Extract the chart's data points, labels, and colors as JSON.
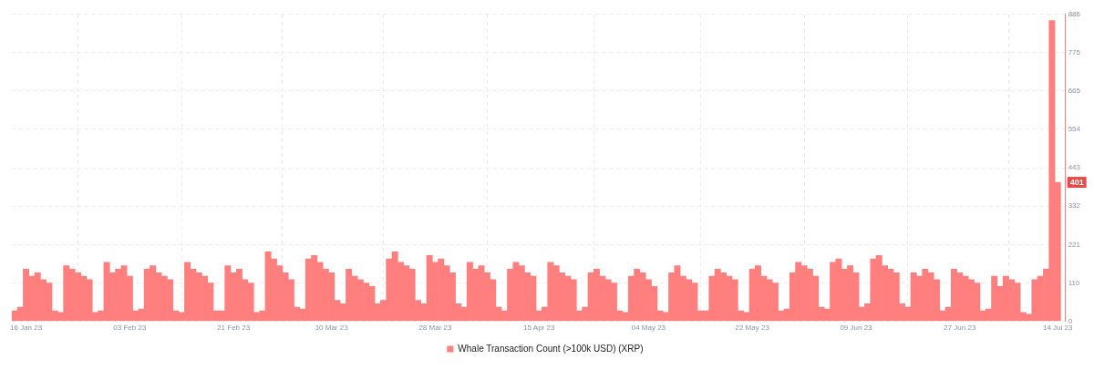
{
  "chart_data": {
    "type": "bar",
    "x": [
      "2023-01-14",
      "2023-01-15",
      "2023-01-16",
      "2023-01-17",
      "2023-01-18",
      "2023-01-19",
      "2023-01-20",
      "2023-01-21",
      "2023-01-22",
      "2023-01-23",
      "2023-01-24",
      "2023-01-25",
      "2023-01-26",
      "2023-01-27",
      "2023-01-28",
      "2023-01-29",
      "2023-01-30",
      "2023-01-31",
      "2023-02-01",
      "2023-02-02",
      "2023-02-03",
      "2023-02-04",
      "2023-02-05",
      "2023-02-06",
      "2023-02-07",
      "2023-02-08",
      "2023-02-09",
      "2023-02-10",
      "2023-02-11",
      "2023-02-12",
      "2023-02-13",
      "2023-02-14",
      "2023-02-15",
      "2023-02-16",
      "2023-02-17",
      "2023-02-18",
      "2023-02-19",
      "2023-02-20",
      "2023-02-21",
      "2023-02-22",
      "2023-02-23",
      "2023-02-24",
      "2023-02-25",
      "2023-02-26",
      "2023-02-27",
      "2023-02-28",
      "2023-03-01",
      "2023-03-02",
      "2023-03-03",
      "2023-03-04",
      "2023-03-05",
      "2023-03-06",
      "2023-03-07",
      "2023-03-08",
      "2023-03-09",
      "2023-03-10",
      "2023-03-11",
      "2023-03-12",
      "2023-03-13",
      "2023-03-14",
      "2023-03-15",
      "2023-03-16",
      "2023-03-17",
      "2023-03-18",
      "2023-03-19",
      "2023-03-20",
      "2023-03-21",
      "2023-03-22",
      "2023-03-23",
      "2023-03-24",
      "2023-03-25",
      "2023-03-26",
      "2023-03-27",
      "2023-03-28",
      "2023-03-29",
      "2023-03-30",
      "2023-03-31",
      "2023-04-01",
      "2023-04-02",
      "2023-04-03",
      "2023-04-04",
      "2023-04-05",
      "2023-04-06",
      "2023-04-07",
      "2023-04-08",
      "2023-04-09",
      "2023-04-10",
      "2023-04-11",
      "2023-04-12",
      "2023-04-13",
      "2023-04-14",
      "2023-04-15",
      "2023-04-16",
      "2023-04-17",
      "2023-04-18",
      "2023-04-19",
      "2023-04-20",
      "2023-04-21",
      "2023-04-22",
      "2023-04-23",
      "2023-04-24",
      "2023-04-25",
      "2023-04-26",
      "2023-04-27",
      "2023-04-28",
      "2023-04-29",
      "2023-04-30",
      "2023-05-01",
      "2023-05-02",
      "2023-05-03",
      "2023-05-04",
      "2023-05-05",
      "2023-05-06",
      "2023-05-07",
      "2023-05-08",
      "2023-05-09",
      "2023-05-10",
      "2023-05-11",
      "2023-05-12",
      "2023-05-13",
      "2023-05-14",
      "2023-05-15",
      "2023-05-16",
      "2023-05-17",
      "2023-05-18",
      "2023-05-19",
      "2023-05-20",
      "2023-05-21",
      "2023-05-22",
      "2023-05-23",
      "2023-05-24",
      "2023-05-25",
      "2023-05-26",
      "2023-05-27",
      "2023-05-28",
      "2023-05-29",
      "2023-05-30",
      "2023-05-31",
      "2023-06-01",
      "2023-06-02",
      "2023-06-03",
      "2023-06-04",
      "2023-06-05",
      "2023-06-06",
      "2023-06-07",
      "2023-06-08",
      "2023-06-09",
      "2023-06-10",
      "2023-06-11",
      "2023-06-12",
      "2023-06-13",
      "2023-06-14",
      "2023-06-15",
      "2023-06-16",
      "2023-06-17",
      "2023-06-18",
      "2023-06-19",
      "2023-06-20",
      "2023-06-21",
      "2023-06-22",
      "2023-06-23",
      "2023-06-24",
      "2023-06-25",
      "2023-06-26",
      "2023-06-27",
      "2023-06-28",
      "2023-06-29",
      "2023-06-30",
      "2023-07-01",
      "2023-07-02",
      "2023-07-03",
      "2023-07-04",
      "2023-07-05",
      "2023-07-06",
      "2023-07-07",
      "2023-07-08",
      "2023-07-09",
      "2023-07-10",
      "2023-07-11",
      "2023-07-12",
      "2023-07-13",
      "2023-07-14"
    ],
    "series": [
      {
        "name": "Whale Transaction Count (>100k USD) (XRP)",
        "color": "#ff7f7f",
        "values": [
          30,
          40,
          150,
          130,
          140,
          120,
          110,
          30,
          25,
          160,
          150,
          140,
          130,
          120,
          25,
          30,
          170,
          140,
          150,
          160,
          130,
          30,
          35,
          150,
          160,
          140,
          130,
          120,
          30,
          25,
          170,
          150,
          140,
          130,
          110,
          30,
          30,
          160,
          140,
          150,
          120,
          110,
          25,
          30,
          200,
          180,
          160,
          140,
          120,
          40,
          35,
          180,
          190,
          170,
          150,
          140,
          60,
          50,
          150,
          130,
          120,
          110,
          100,
          50,
          60,
          180,
          200,
          170,
          160,
          150,
          60,
          50,
          190,
          170,
          180,
          160,
          140,
          50,
          40,
          170,
          150,
          160,
          140,
          120,
          40,
          30,
          150,
          170,
          160,
          140,
          130,
          30,
          40,
          170,
          160,
          140,
          130,
          120,
          30,
          40,
          140,
          150,
          130,
          120,
          110,
          30,
          25,
          130,
          150,
          140,
          120,
          100,
          30,
          25,
          140,
          160,
          130,
          120,
          110,
          30,
          30,
          130,
          150,
          140,
          130,
          120,
          30,
          25,
          150,
          160,
          130,
          120,
          110,
          30,
          35,
          140,
          170,
          160,
          150,
          130,
          40,
          35,
          170,
          180,
          150,
          160,
          140,
          40,
          50,
          180,
          190,
          160,
          150,
          140,
          50,
          40,
          140,
          130,
          150,
          140,
          120,
          30,
          40,
          150,
          140,
          130,
          120,
          110,
          30,
          35,
          130,
          100,
          130,
          120,
          110,
          25,
          20,
          120,
          130,
          150,
          868,
          401
        ]
      }
    ],
    "xlim": [
      "2023-01-13T12:00",
      "2023-07-15T08:00"
    ],
    "xticks": [
      {
        "value": "2023-01-16",
        "label": "16 Jan 23"
      },
      {
        "value": "2023-02-03",
        "label": "03 Feb 23"
      },
      {
        "value": "2023-02-21",
        "label": "21 Feb 23"
      },
      {
        "value": "2023-03-10",
        "label": "10 Mar 23"
      },
      {
        "value": "2023-03-28",
        "label": "28 Mar 23"
      },
      {
        "value": "2023-04-15",
        "label": "15 Apr 23"
      },
      {
        "value": "2023-05-04",
        "label": "04 May 23"
      },
      {
        "value": "2023-05-22",
        "label": "22 May 23"
      },
      {
        "value": "2023-06-09",
        "label": "09 Jun 23"
      },
      {
        "value": "2023-06-27",
        "label": "27 Jun 23"
      },
      {
        "value": "2023-07-14",
        "label": "14 Jul 23"
      }
    ],
    "ylim": [
      0,
      886
    ],
    "yticks": [
      0,
      110,
      221,
      332,
      443,
      554,
      665,
      775,
      886
    ],
    "annotations": [
      "401"
    ],
    "grid": true,
    "legend": "bottom"
  }
}
